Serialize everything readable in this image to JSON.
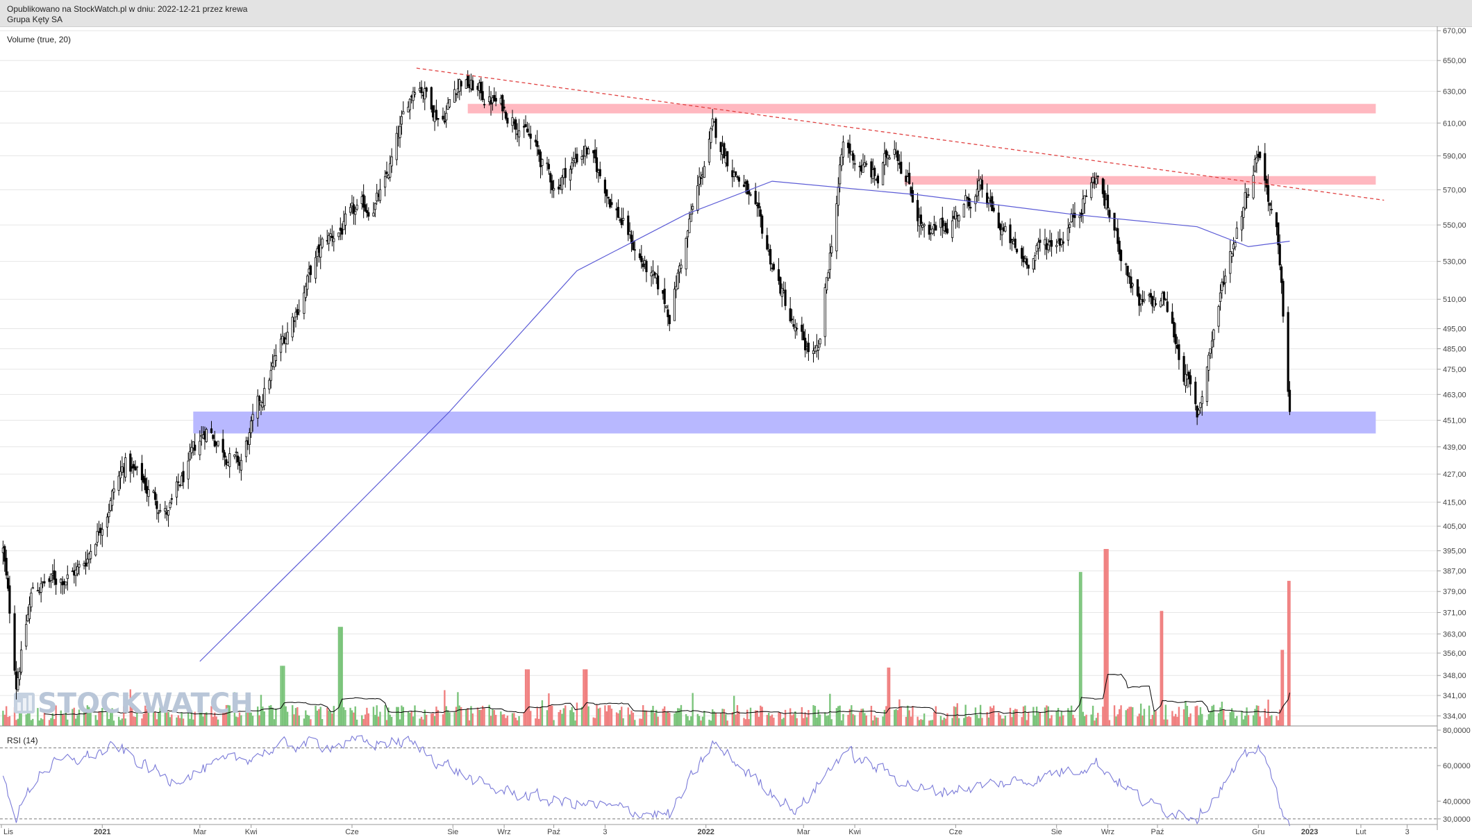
{
  "header": {
    "line1": "Opublikowano na StockWatch.pl w dniu: 2022-12-21 przez krewa",
    "line2": "Grupa Kęty SA"
  },
  "watermark": "STOCKWATCH",
  "colors": {
    "candle": "#000000",
    "sma": "#5b5bd6",
    "trendline": "#e04040",
    "resistance_zone": "#ffb8c0",
    "support_zone": "#b8b8ff",
    "volume_up": "#7bc47b",
    "volume_down": "#f08080",
    "volume_avg": "#000000",
    "rsi": "#7a7ad8",
    "grid": "#e6e6e6"
  },
  "chart_data": [
    {
      "type": "candlestick",
      "title": "",
      "x_tick_labels": [
        "Lis",
        "2021",
        "Mar",
        "Kwi",
        "Cze",
        "Sie",
        "Wrz",
        "Paź",
        "3",
        "2022",
        "Mar",
        "Kwi",
        "Cze",
        "Sie",
        "Wrz",
        "Paź",
        "Gru",
        "2023",
        "Lut",
        "3"
      ],
      "y_tick_labels": [
        "334,00",
        "341,00",
        "348,00",
        "356,00",
        "363,00",
        "371,00",
        "379,00",
        "387,00",
        "395,00",
        "405,00",
        "415,00",
        "427,00",
        "439,00",
        "451,00",
        "463,00",
        "475,00",
        "485,00",
        "495,00",
        "510,00",
        "530,00",
        "550,00",
        "570,00",
        "590,00",
        "610,00",
        "630,00",
        "650,00",
        "670,00"
      ],
      "y_scale": "log",
      "ylim": [
        332,
        672
      ],
      "grid": true,
      "key_points": [
        {
          "date": "2020-11-02",
          "close": 395
        },
        {
          "date": "2020-11-10",
          "close": 346
        },
        {
          "date": "2020-11-20",
          "close": 380
        },
        {
          "date": "2020-12-20",
          "close": 388
        },
        {
          "date": "2021-01-15",
          "close": 432
        },
        {
          "date": "2021-02-10",
          "close": 410
        },
        {
          "date": "2021-03-05",
          "close": 448
        },
        {
          "date": "2021-03-25",
          "close": 430
        },
        {
          "date": "2021-04-15",
          "close": 478
        },
        {
          "date": "2021-05-15",
          "close": 540
        },
        {
          "date": "2021-06-20",
          "close": 568
        },
        {
          "date": "2021-07-10",
          "close": 640
        },
        {
          "date": "2021-07-25",
          "close": 612
        },
        {
          "date": "2021-08-05",
          "close": 638
        },
        {
          "date": "2021-09-10",
          "close": 612
        },
        {
          "date": "2021-10-01",
          "close": 572
        },
        {
          "date": "2021-10-20",
          "close": 595
        },
        {
          "date": "2021-11-20",
          "close": 535
        },
        {
          "date": "2021-12-10",
          "close": 503
        },
        {
          "date": "2022-01-05",
          "close": 605
        },
        {
          "date": "2022-01-25",
          "close": 570
        },
        {
          "date": "2022-02-25",
          "close": 490
        },
        {
          "date": "2022-03-10",
          "close": 480
        },
        {
          "date": "2022-03-25",
          "close": 595
        },
        {
          "date": "2022-04-15",
          "close": 575
        },
        {
          "date": "2022-04-25",
          "close": 600
        },
        {
          "date": "2022-05-15",
          "close": 540
        },
        {
          "date": "2022-06-15",
          "close": 570
        },
        {
          "date": "2022-07-10",
          "close": 530
        },
        {
          "date": "2022-08-05",
          "close": 545
        },
        {
          "date": "2022-08-25",
          "close": 578
        },
        {
          "date": "2022-09-20",
          "close": 505
        },
        {
          "date": "2022-10-05",
          "close": 510
        },
        {
          "date": "2022-10-25",
          "close": 452
        },
        {
          "date": "2022-11-10",
          "close": 520
        },
        {
          "date": "2022-12-01",
          "close": 595
        },
        {
          "date": "2022-12-12",
          "close": 545
        },
        {
          "date": "2022-12-20",
          "close": 455
        }
      ],
      "sma": {
        "name": "",
        "points": [
          {
            "date": "2021-03-01",
            "value": 353
          },
          {
            "date": "2021-05-15",
            "value": 400
          },
          {
            "date": "2021-07-30",
            "value": 455
          },
          {
            "date": "2021-10-15",
            "value": 525
          },
          {
            "date": "2021-12-20",
            "value": 556
          },
          {
            "date": "2022-02-10",
            "value": 575
          },
          {
            "date": "2022-05-10",
            "value": 567
          },
          {
            "date": "2022-08-10",
            "value": 556
          },
          {
            "date": "2022-10-25",
            "value": 549
          },
          {
            "date": "2022-11-25",
            "value": 538
          },
          {
            "date": "2022-12-20",
            "value": 541
          }
        ]
      },
      "trendline": {
        "start": {
          "date": "2021-07-10",
          "value": 645
        },
        "end": {
          "date": "2023-02-15",
          "value": 564
        }
      },
      "zones": [
        {
          "name": "resistance-upper",
          "from_date": "2021-08-10",
          "to_date": "2023-02-10",
          "low": 616,
          "high": 622
        },
        {
          "name": "resistance-lower",
          "from_date": "2022-05-01",
          "to_date": "2023-02-10",
          "low": 573,
          "high": 578
        },
        {
          "name": "support",
          "from_date": "2021-02-25",
          "to_date": "2023-02-10",
          "low": 445,
          "high": 455
        }
      ]
    },
    {
      "type": "bar",
      "title": "Volume (true, 20)",
      "spikes": [
        {
          "date": "2021-05-25",
          "value_rel": 0.56,
          "up": true
        },
        {
          "date": "2021-04-20",
          "value_rel": 0.34,
          "up": true
        },
        {
          "date": "2021-09-15",
          "value_rel": 0.32,
          "up": false
        },
        {
          "date": "2021-10-20",
          "value_rel": 0.32,
          "up": false
        },
        {
          "date": "2022-04-22",
          "value_rel": 0.33,
          "up": false
        },
        {
          "date": "2022-08-15",
          "value_rel": 0.87,
          "up": true
        },
        {
          "date": "2022-08-31",
          "value_rel": 1.0,
          "up": false
        },
        {
          "date": "2022-10-03",
          "value_rel": 0.65,
          "up": false
        },
        {
          "date": "2022-12-16",
          "value_rel": 0.43,
          "up": false
        },
        {
          "date": "2022-12-20",
          "value_rel": 0.82,
          "up": false
        }
      ]
    },
    {
      "type": "line",
      "title": "RSI (14)",
      "y_tick_labels": [
        "80,0000",
        "60,0000",
        "40,0000",
        "30,0000"
      ],
      "ylim": [
        28,
        80
      ],
      "reference_lines": [
        70,
        30
      ],
      "key_points": [
        {
          "date": "2020-11-02",
          "value": 52
        },
        {
          "date": "2020-11-10",
          "value": 32
        },
        {
          "date": "2020-11-25",
          "value": 58
        },
        {
          "date": "2021-01-10",
          "value": 70
        },
        {
          "date": "2021-02-10",
          "value": 52
        },
        {
          "date": "2021-04-25",
          "value": 72
        },
        {
          "date": "2021-07-05",
          "value": 73
        },
        {
          "date": "2021-08-20",
          "value": 48
        },
        {
          "date": "2021-10-01",
          "value": 40
        },
        {
          "date": "2021-12-10",
          "value": 32
        },
        {
          "date": "2022-01-05",
          "value": 72
        },
        {
          "date": "2022-02-25",
          "value": 34
        },
        {
          "date": "2022-03-25",
          "value": 68
        },
        {
          "date": "2022-05-15",
          "value": 45
        },
        {
          "date": "2022-07-15",
          "value": 52
        },
        {
          "date": "2022-08-25",
          "value": 62
        },
        {
          "date": "2022-09-25",
          "value": 38
        },
        {
          "date": "2022-10-25",
          "value": 32
        },
        {
          "date": "2022-12-01",
          "value": 72
        },
        {
          "date": "2022-12-20",
          "value": 26
        }
      ]
    }
  ]
}
